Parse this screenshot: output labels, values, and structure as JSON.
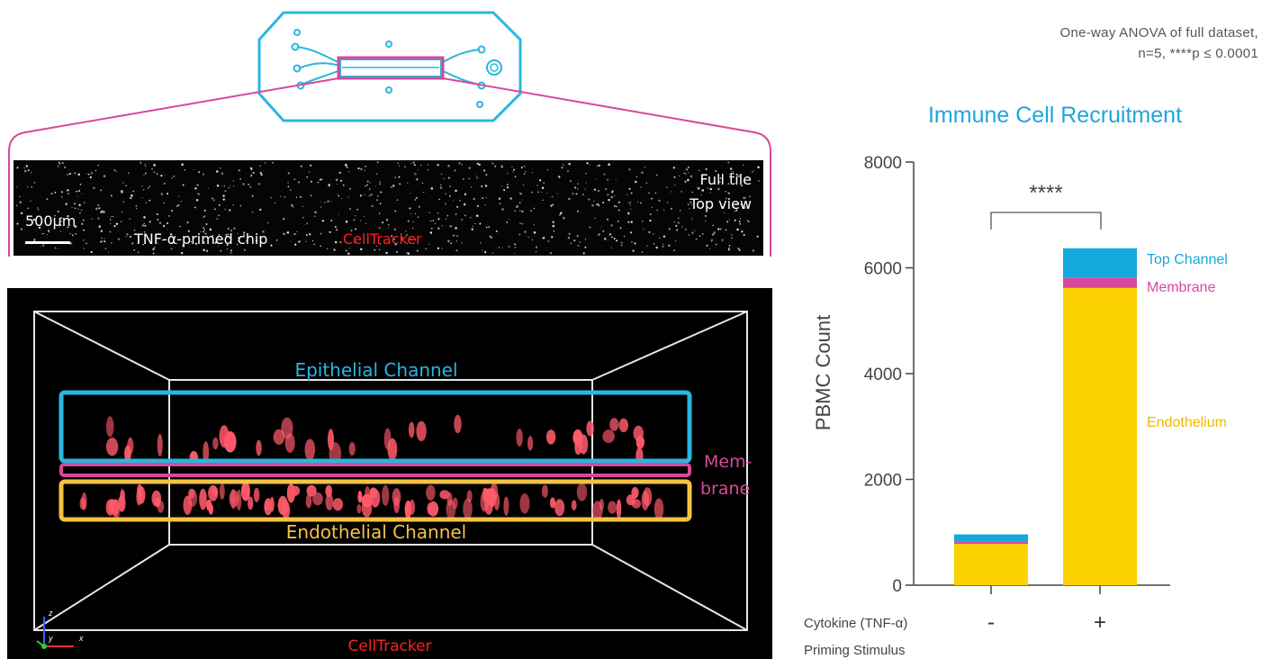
{
  "colors": {
    "epithelial": "#29b6e0",
    "membrane": "#d8489a",
    "endothelial": "#f5c242",
    "bar_top": "#14a8dc",
    "bar_membrane": "#d8489a",
    "bar_endothelium": "#fcd200",
    "title": "#1ea6dc",
    "axis": "#444444",
    "cell": "#ff5a6a"
  },
  "chip_icon": "microfluidic-chip-icon",
  "stats_note": {
    "line1": "One-way ANOVA of full dataset,",
    "line2": "n=5, ****p ≤ 0.0001"
  },
  "top_image": {
    "scale_bar": "500µm",
    "sample": "TNF-α-primed chip",
    "stain": "CellTracker",
    "view_line1": "Full tile",
    "view_line2": "Top view"
  },
  "bottom_image": {
    "epithelial_label": "Epithelial Channel",
    "membrane_label_1": "Mem-",
    "membrane_label_2": "brane",
    "endothelial_label": "Endothelial Channel",
    "stain": "CellTracker",
    "axis_z": "z",
    "axis_y": "y",
    "axis_x": "x"
  },
  "chart_data": {
    "type": "bar",
    "title": "Immune Cell Recruitment",
    "ylabel": "PBMC Count",
    "ylim": [
      0,
      8000
    ],
    "yticks": [
      0,
      2000,
      4000,
      6000,
      8000
    ],
    "categories": [
      "-",
      "+"
    ],
    "xrow_label": "Cytokine (TNF-α)",
    "xrow_label2": "Priming Stimulus",
    "stacked": true,
    "series": [
      {
        "name": "Endothelium",
        "values": [
          780,
          5620
        ]
      },
      {
        "name": "Membrane",
        "values": [
          50,
          190
        ]
      },
      {
        "name": "Top Channel",
        "values": [
          130,
          560
        ]
      }
    ],
    "significance": "****"
  }
}
